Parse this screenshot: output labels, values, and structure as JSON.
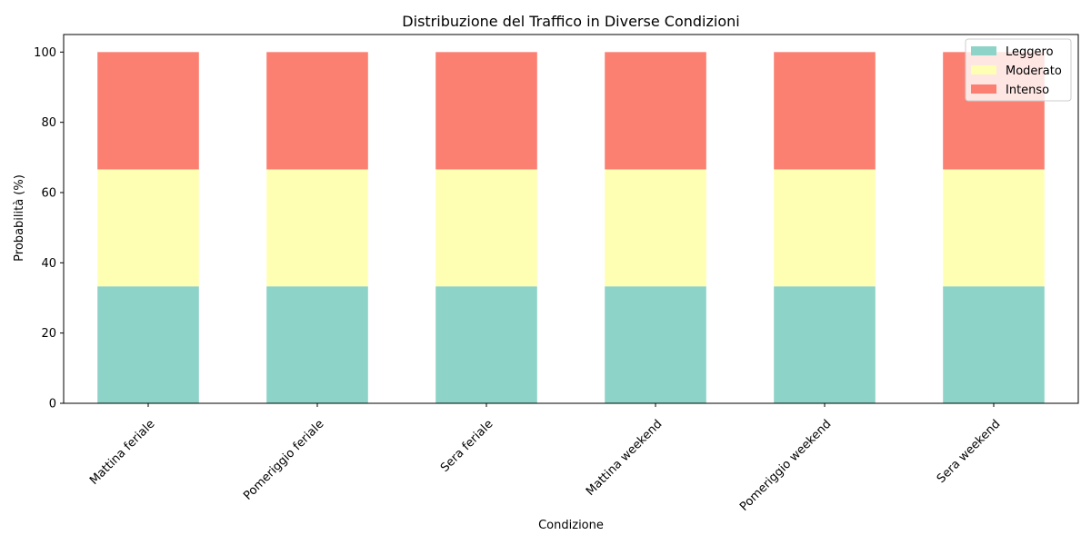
{
  "chart_data": {
    "type": "bar",
    "stacked": true,
    "title": "Distribuzione del Traffico in Diverse Condizioni",
    "xlabel": "Condizione",
    "ylabel": "Probabilità (%)",
    "ylim": [
      0,
      105
    ],
    "yticks": [
      0,
      20,
      40,
      60,
      80,
      100
    ],
    "categories": [
      "Mattina feriale",
      "Pomeriggio feriale",
      "Sera feriale",
      "Mattina weekend",
      "Pomeriggio weekend",
      "Sera weekend"
    ],
    "series": [
      {
        "name": "Leggero",
        "color": "#8dd3c7",
        "values": [
          33.3,
          33.3,
          33.3,
          33.3,
          33.3,
          33.3
        ]
      },
      {
        "name": "Moderato",
        "color": "#ffffb3",
        "values": [
          33.3,
          33.3,
          33.3,
          33.3,
          33.3,
          33.3
        ]
      },
      {
        "name": "Intenso",
        "color": "#fb8072",
        "values": [
          33.4,
          33.4,
          33.4,
          33.4,
          33.4,
          33.4
        ]
      }
    ],
    "grid": false,
    "legend_position": "top-right"
  }
}
